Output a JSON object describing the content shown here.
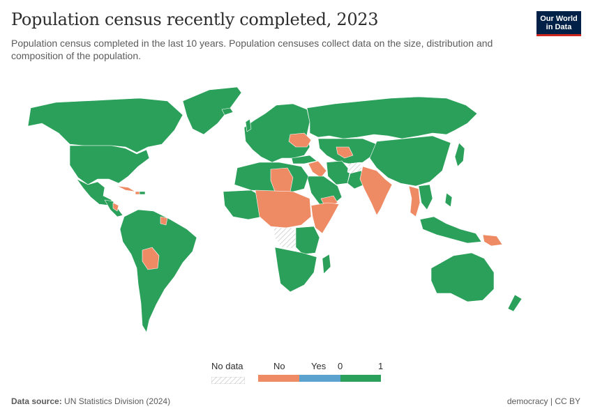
{
  "header": {
    "title": "Population census recently completed, 2023",
    "subtitle": "Population census completed in the last 10 years. Population censuses collect data on the size, distribution and composition of the population."
  },
  "logo": {
    "line1": "Our World",
    "line2": "in Data"
  },
  "legend": {
    "no_data_label": "No data",
    "no_label": "No",
    "yes_label": "Yes",
    "zero_label": "0",
    "one_label": "1"
  },
  "colors": {
    "yes": "#2ba05a",
    "no": "#ee8a64",
    "yes_swatch": "#5ba2cf",
    "no_data": "#dcdcdc",
    "logo_bg": "#002147",
    "logo_accent": "#ce261e"
  },
  "footer": {
    "source_label": "Data source:",
    "source_value": "UN Statistics Division (2024)",
    "license": "democracy | CC BY"
  }
}
